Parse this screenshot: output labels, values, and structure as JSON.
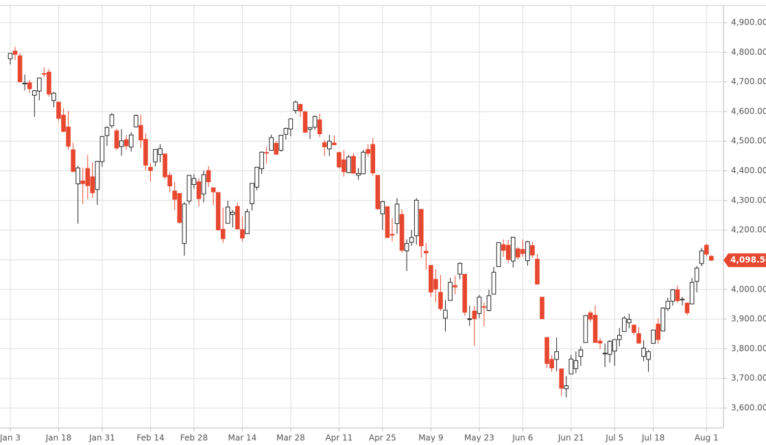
{
  "chart_data": {
    "type": "candlestick",
    "categories": [
      "Jan 3",
      null,
      null,
      null,
      null,
      null,
      null,
      null,
      null,
      null,
      "Jan 18",
      null,
      null,
      null,
      null,
      null,
      null,
      null,
      null,
      "Jan 31",
      null,
      null,
      null,
      null,
      null,
      null,
      null,
      null,
      null,
      "Feb 14",
      null,
      null,
      null,
      null,
      null,
      null,
      null,
      null,
      "Feb 28",
      null,
      null,
      null,
      null,
      null,
      null,
      null,
      null,
      null,
      "Mar 14",
      null,
      null,
      null,
      null,
      null,
      null,
      null,
      null,
      null,
      "Mar 28",
      null,
      null,
      null,
      null,
      null,
      null,
      null,
      null,
      null,
      "Apr 11",
      null,
      null,
      null,
      null,
      null,
      null,
      null,
      null,
      "Apr 25",
      null,
      null,
      null,
      null,
      null,
      null,
      null,
      null,
      null,
      "May 9",
      null,
      null,
      null,
      null,
      null,
      null,
      null,
      null,
      null,
      "May 23",
      null,
      null,
      null,
      null,
      null,
      null,
      null,
      null,
      "Jun 6",
      null,
      null,
      null,
      null,
      null,
      null,
      null,
      null,
      null,
      "Jun 21",
      null,
      null,
      null,
      null,
      null,
      null,
      null,
      null,
      "Jul 5",
      null,
      null,
      null,
      null,
      null,
      null,
      null,
      "Jul 18",
      null,
      null,
      null,
      null,
      null,
      null,
      null,
      null,
      null,
      null,
      "Aug 1",
      null
    ],
    "open": [
      4778,
      4804,
      4788,
      4693,
      4697,
      4655,
      4669,
      4728,
      4733,
      4637,
      4632,
      4588,
      4548,
      4471,
      4356,
      4366,
      4408,
      4380,
      4337,
      4431,
      4519,
      4552,
      4535,
      4482,
      4505,
      4480,
      4548,
      4553,
      4506,
      4412,
      4430,
      4455,
      4457,
      4385,
      4332,
      4324,
      4155,
      4298,
      4354,
      4363,
      4322,
      4401,
      4343,
      4327,
      4203,
      4223,
      4253,
      4280,
      4202,
      4188,
      4289,
      4345,
      4407,
      4462,
      4469,
      4493,
      4469,
      4523,
      4541,
      4603,
      4624,
      4599,
      4540,
      4547,
      4572,
      4495,
      4474,
      4494,
      4462,
      4437,
      4394,
      4449,
      4385,
      4390,
      4472,
      4489,
      4385,
      4255,
      4279,
      4186,
      4222,
      4253,
      4130,
      4159,
      4181,
      4270,
      4129,
      4081,
      4034,
      3990,
      3903,
      3963,
      4013,
      4052,
      4051,
      3899,
      3927,
      3919,
      3942,
      3929,
      3984,
      4077,
      4151,
      4149,
      4096,
      4137,
      4135,
      4097,
      4148,
      4102,
      3974,
      3838,
      3764,
      3764,
      3732,
      3665,
      3715,
      3733,
      3774,
      3821,
      3921,
      3913,
      3826,
      3785,
      3781,
      3792,
      3831,
      3858,
      3888,
      3880,
      3851,
      3774,
      3764,
      3818,
      3883,
      3860,
      3935,
      3960,
      3999,
      3965,
      3954,
      3951,
      4027,
      4087,
      4149,
      4112
    ],
    "high": [
      4797,
      4818,
      4797,
      4725,
      4707,
      4673,
      4714,
      4749,
      4744,
      4666,
      4632,
      4611,
      4602,
      4495,
      4417,
      4411,
      4453,
      4428,
      4433,
      4516,
      4550,
      4595,
      4542,
      4540,
      4521,
      4531,
      4590,
      4589,
      4527,
      4426,
      4473,
      4490,
      4457,
      4395,
      4363,
      4325,
      4294,
      4385,
      4389,
      4375,
      4401,
      4416,
      4343,
      4327,
      4276,
      4299,
      4268,
      4292,
      4247,
      4272,
      4358,
      4412,
      4465,
      4481,
      4522,
      4501,
      4520,
      4546,
      4575,
      4637,
      4627,
      4603,
      4548,
      4587,
      4593,
      4504,
      4521,
      4520,
      4464,
      4471,
      4453,
      4460,
      4410,
      4471,
      4489,
      4512,
      4386,
      4299,
      4279,
      4240,
      4308,
      4270,
      4169,
      4200,
      4308,
      4270,
      4157,
      4082,
      4068,
      4049,
      3964,
      4039,
      4047,
      4091,
      4051,
      3945,
      3944,
      3982,
      3956,
      3999,
      4076,
      4158,
      4169,
      4167,
      4177,
      4143,
      4169,
      4164,
      4160,
      4120,
      3974,
      3838,
      3778,
      3838,
      3733,
      3708,
      3779,
      3791,
      3808,
      3913,
      3928,
      3946,
      3836,
      3818,
      3829,
      3832,
      3870,
      3910,
      3918,
      3880,
      3873,
      3829,
      3796,
      3863,
      3903,
      3940,
      3972,
      4001,
      4013,
      3975,
      3956,
      4039,
      4079,
      4140,
      4155,
      4116
    ],
    "low": [
      4759,
      4774,
      4699,
      4671,
      4663,
      4582,
      4638,
      4716,
      4650,
      4614,
      4568,
      4530,
      4471,
      4395,
      4222,
      4287,
      4304,
      4309,
      4285,
      4414,
      4484,
      4544,
      4470,
      4451,
      4471,
      4465,
      4548,
      4477,
      4402,
      4364,
      4415,
      4429,
      4372,
      4327,
      4268,
      4222,
      4114,
      4287,
      4340,
      4279,
      4294,
      4345,
      4284,
      4199,
      4157,
      4223,
      4209,
      4202,
      4162,
      4187,
      4266,
      4335,
      4390,
      4424,
      4469,
      4455,
      4465,
      4505,
      4517,
      4593,
      4581,
      4530,
      4507,
      4539,
      4514,
      4450,
      4450,
      4486,
      4408,
      4381,
      4392,
      4392,
      4370,
      4390,
      4448,
      4384,
      4268,
      4201,
      4175,
      4162,
      4188,
      4124,
      4062,
      4147,
      4151,
      4106,
      4067,
      3975,
      3957,
      3928,
      3858,
      3963,
      3983,
      4034,
      3911,
      3877,
      3810,
      3903,
      3875,
      3926,
      3984,
      4077,
      4110,
      4089,
      4074,
      4101,
      4110,
      4080,
      4107,
      4017,
      3900,
      3735,
      3722,
      3724,
      3640,
      3636,
      3715,
      3717,
      3742,
      3821,
      3890,
      3821,
      3799,
      3738,
      3753,
      3742,
      3808,
      3858,
      3869,
      3847,
      3817,
      3758,
      3722,
      3817,
      3817,
      3860,
      3927,
      3945,
      3955,
      3946,
      3913,
      3951,
      3990,
      4078,
      4111,
      4096
    ],
    "close": [
      4796,
      4793,
      4700,
      4696,
      4677,
      4670,
      4713,
      4726,
      4659,
      4662,
      4577,
      4533,
      4483,
      4398,
      4410,
      4357,
      4350,
      4326,
      4432,
      4516,
      4546,
      4589,
      4477,
      4501,
      4484,
      4521,
      4587,
      4504,
      4419,
      4401,
      4472,
      4475,
      4380,
      4349,
      4304,
      4226,
      4288,
      4385,
      4374,
      4306,
      4387,
      4363,
      4329,
      4201,
      4171,
      4278,
      4260,
      4204,
      4173,
      4262,
      4358,
      4412,
      4463,
      4461,
      4512,
      4456,
      4520,
      4543,
      4575,
      4632,
      4602,
      4530,
      4546,
      4583,
      4525,
      4481,
      4500,
      4488,
      4413,
      4397,
      4447,
      4392,
      4391,
      4463,
      4459,
      4393,
      4272,
      4296,
      4175,
      4183,
      4288,
      4132,
      4155,
      4175,
      4301,
      4147,
      4123,
      3991,
      4001,
      3935,
      3930,
      4024,
      4008,
      4088,
      3923,
      3901,
      3901,
      3974,
      3941,
      3979,
      4058,
      4158,
      4132,
      4101,
      4176,
      4109,
      4121,
      4161,
      4116,
      4018,
      3901,
      3750,
      3735,
      3790,
      3667,
      3675,
      3765,
      3760,
      3796,
      3912,
      3900,
      3821,
      3819,
      3785,
      3825,
      3831,
      3845,
      3903,
      3899,
      3855,
      3819,
      3802,
      3790,
      3863,
      3831,
      3937,
      3960,
      3999,
      3962,
      3967,
      3921,
      4024,
      4072,
      4130,
      4119,
      4098.5
    ],
    "up_color": "#ffffff",
    "down_color": "#e8472f",
    "ylim": [
      3600,
      4900
    ],
    "yticks": [
      {
        "value": 3600,
        "label": "3,600.00"
      },
      {
        "value": 3700,
        "label": "3,700.00"
      },
      {
        "value": 3800,
        "label": "3,800.00"
      },
      {
        "value": 3900,
        "label": "3,900.00"
      },
      {
        "value": 4000,
        "label": "4,000.00"
      },
      {
        "value": 4100,
        "label": "4,100.00"
      },
      {
        "value": 4200,
        "label": "4,200.00"
      },
      {
        "value": 4300,
        "label": "4,300.00"
      },
      {
        "value": 4400,
        "label": "4,400.00"
      },
      {
        "value": 4500,
        "label": "4,500.00"
      },
      {
        "value": 4600,
        "label": "4,600.00"
      },
      {
        "value": 4700,
        "label": "4,700.00"
      },
      {
        "value": 4800,
        "label": "4,800.00"
      },
      {
        "value": 4900,
        "label": "4,900.00"
      }
    ],
    "last_price": {
      "value": 4098.5,
      "label": "4,098.50"
    },
    "grid": true
  }
}
